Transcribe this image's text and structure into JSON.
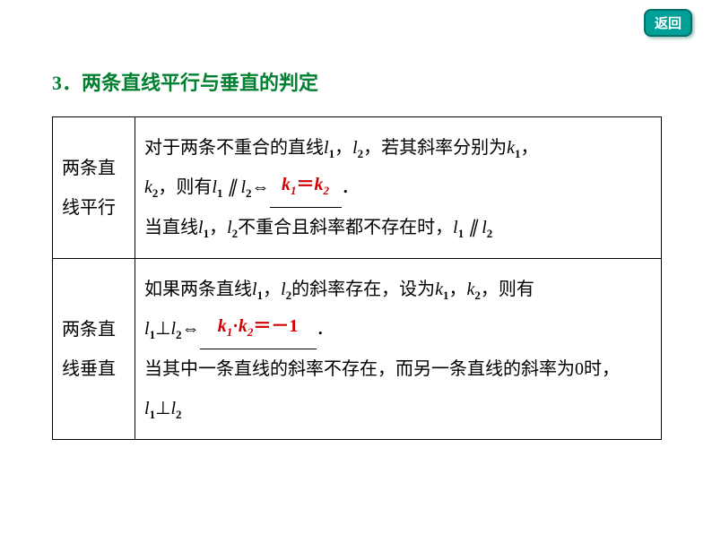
{
  "backButton": {
    "label": "返回"
  },
  "section": {
    "number": "3．",
    "title": "两条直线平行与垂直的判定"
  },
  "table": {
    "rows": [
      {
        "header": "两条直线平行",
        "content": {
          "line1_pre": "对于两条不重合的直线",
          "line1_mid": "，若其斜率分别为",
          "line2_pre": "，则有",
          "line3": "当直线",
          "line3_mid": "不重合且斜率都不存在时，",
          "answer": "k₁＝k₂"
        }
      },
      {
        "header": "两条直线垂直",
        "content": {
          "line1_pre": "如果两条直线",
          "line1_mid": "的斜率存在，设为",
          "line1_end": "，则有",
          "line3": "当其中一条直线的斜率不存在，而另一条直线的斜率为0时，",
          "answer": "k₁·k₂＝－1"
        }
      }
    ]
  },
  "colors": {
    "titleColor": "#008030",
    "answerColor": "#d00000",
    "buttonBg": "#00a098",
    "buttonBorder": "#007068",
    "textColor": "#000000"
  }
}
